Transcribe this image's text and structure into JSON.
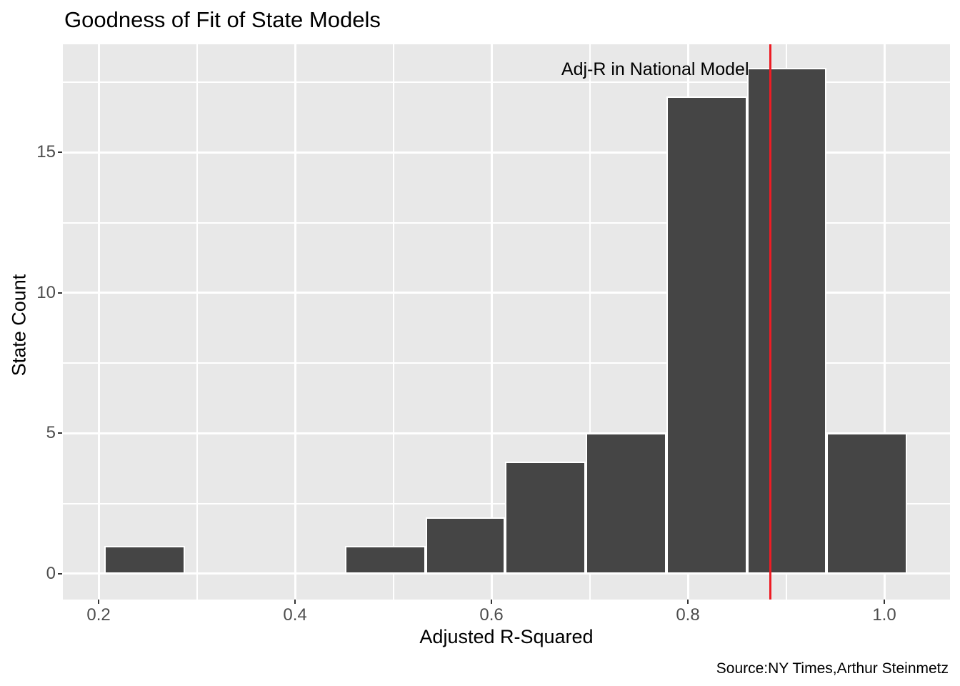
{
  "chart_data": {
    "type": "bar",
    "subtype": "histogram",
    "title": "Goodness of Fit of State Models",
    "xlabel": "Adjusted R-Squared",
    "ylabel": "State Count",
    "caption": "Source:NY Times,Arthur Steinmetz",
    "annotation": {
      "label": "Adj-R in National Model",
      "anchor_x": 0.884,
      "anchor_y": 18
    },
    "vline": {
      "x": 0.884,
      "color": "#ED1C24"
    },
    "bins": [
      {
        "x0": 0.206,
        "x1": 0.288,
        "count": 1
      },
      {
        "x0": 0.288,
        "x1": 0.369,
        "count": 0
      },
      {
        "x0": 0.369,
        "x1": 0.451,
        "count": 0
      },
      {
        "x0": 0.451,
        "x1": 0.533,
        "count": 1
      },
      {
        "x0": 0.533,
        "x1": 0.614,
        "count": 2
      },
      {
        "x0": 0.614,
        "x1": 0.696,
        "count": 4
      },
      {
        "x0": 0.696,
        "x1": 0.778,
        "count": 5
      },
      {
        "x0": 0.778,
        "x1": 0.86,
        "count": 17
      },
      {
        "x0": 0.86,
        "x1": 0.941,
        "count": 18
      },
      {
        "x0": 0.941,
        "x1": 1.023,
        "count": 5
      }
    ],
    "x_ticks": [
      {
        "value": 0.2,
        "label": "0.2"
      },
      {
        "value": 0.4,
        "label": "0.4"
      },
      {
        "value": 0.6,
        "label": "0.6"
      },
      {
        "value": 0.8,
        "label": "0.8"
      },
      {
        "value": 1.0,
        "label": "1.0"
      }
    ],
    "y_ticks": [
      {
        "value": 0,
        "label": "0"
      },
      {
        "value": 5,
        "label": "5"
      },
      {
        "value": 10,
        "label": "10"
      },
      {
        "value": 15,
        "label": "15"
      }
    ],
    "x_minor_gridlines": [
      0.3,
      0.5,
      0.7,
      0.9
    ],
    "y_minor_gridlines": [
      2.5,
      7.5,
      12.5,
      17.5
    ],
    "xlim": [
      0.1636,
      1.0669
    ],
    "ylim": [
      -0.92,
      18.85
    ],
    "grid": "on",
    "legend": "none",
    "colors": {
      "bar_fill": "#454545",
      "bar_stroke": "#FFFFFF",
      "panel_background": "#E8E8E8",
      "gridline": "#FFFFFF",
      "vline": "#ED1C24",
      "tick_label": "#4D4D4D",
      "tick_mark": "#333333",
      "text": "#000000"
    }
  }
}
